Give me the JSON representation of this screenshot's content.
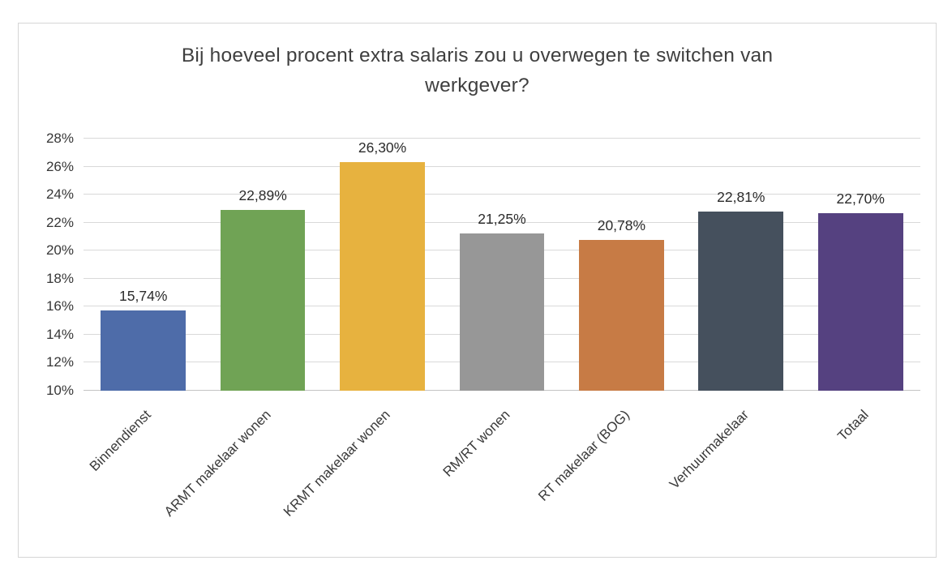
{
  "chart_data": {
    "type": "bar",
    "title": "Bij hoeveel procent extra salaris zou u overwegen te switchen van werkgever?",
    "categories": [
      "Binnendienst",
      "ARMT makelaar wonen",
      "KRMT makelaar wonen",
      "RM/RT wonen",
      "RT makelaar (BOG)",
      "Verhuurmakelaar",
      "Totaal"
    ],
    "values": [
      15.74,
      22.89,
      26.3,
      21.25,
      20.78,
      22.81,
      22.7
    ],
    "value_labels": [
      "15,74%",
      "22,89%",
      "26,30%",
      "21,25%",
      "20,78%",
      "22,81%",
      "22,70%"
    ],
    "bar_colors": [
      "#4e6ca9",
      "#70a355",
      "#e7b23f",
      "#979797",
      "#c77b45",
      "#45505d",
      "#554180"
    ],
    "y_ticks": [
      "10%",
      "12%",
      "14%",
      "16%",
      "18%",
      "20%",
      "22%",
      "24%",
      "26%",
      "28%"
    ],
    "ylim": [
      10,
      28
    ],
    "xlabel": "",
    "ylabel": "",
    "grid": true,
    "legend": false
  },
  "colors": {
    "grid": "#d9d9d9",
    "axis_baseline": "#c3c3c3",
    "title_text": "#3f3f3f",
    "tick_text": "#363636",
    "data_label_text": "#2b2b2b",
    "chart_border": "#d6d6d6",
    "background": "#ffffff"
  }
}
